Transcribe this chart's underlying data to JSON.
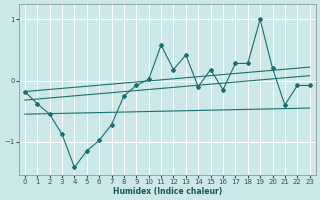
{
  "xlabel": "Humidex (Indice chaleur)",
  "bg_color": "#cce8e8",
  "grid_color": "#ffffff",
  "line_color": "#1a7070",
  "xlim": [
    -0.5,
    23.5
  ],
  "ylim": [
    -1.55,
    1.25
  ],
  "xticks": [
    0,
    1,
    2,
    3,
    4,
    5,
    6,
    7,
    8,
    9,
    10,
    11,
    12,
    13,
    14,
    15,
    16,
    17,
    18,
    19,
    20,
    21,
    22,
    23
  ],
  "yticks": [
    -1,
    0,
    1
  ],
  "main_x": [
    0,
    1,
    2,
    3,
    4,
    5,
    6,
    7,
    8,
    9,
    10,
    11,
    12,
    13,
    14,
    15,
    16,
    17,
    18,
    19,
    20,
    21,
    22,
    23
  ],
  "main_y": [
    -0.18,
    -0.38,
    -0.55,
    -0.88,
    -1.42,
    -1.15,
    -0.98,
    -0.72,
    -0.25,
    -0.08,
    0.02,
    0.58,
    0.18,
    0.42,
    -0.1,
    0.18,
    -0.15,
    0.28,
    0.28,
    1.0,
    0.2,
    -0.4,
    -0.08,
    -0.08
  ],
  "upper_line_x": [
    0,
    23
  ],
  "upper_line_y": [
    -0.18,
    0.22
  ],
  "mid_line_x": [
    0,
    23
  ],
  "mid_line_y": [
    -0.32,
    0.08
  ],
  "lower_line_x": [
    0,
    23
  ],
  "lower_line_y": [
    -0.55,
    -0.45
  ]
}
